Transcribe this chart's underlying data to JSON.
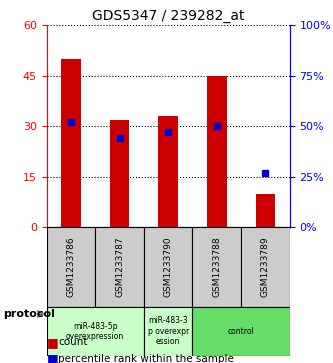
{
  "title": "GDS5347 / 239282_at",
  "samples": [
    "GSM1233786",
    "GSM1233787",
    "GSM1233790",
    "GSM1233788",
    "GSM1233789"
  ],
  "red_values": [
    50,
    32,
    33,
    45,
    10
  ],
  "blue_percentiles": [
    52,
    44,
    47,
    50,
    27
  ],
  "ylim_left": [
    0,
    60
  ],
  "ylim_right": [
    0,
    100
  ],
  "yticks_left": [
    0,
    15,
    30,
    45,
    60
  ],
  "yticks_right": [
    0,
    25,
    50,
    75,
    100
  ],
  "ytick_labels_left": [
    "0",
    "15",
    "30",
    "45",
    "60"
  ],
  "ytick_labels_right": [
    "0%",
    "25%",
    "50%",
    "75%",
    "100%"
  ],
  "groups": [
    {
      "label": "miR-483-5p\noverexpression",
      "samples": [
        0,
        1
      ],
      "color": "#b3ffb3"
    },
    {
      "label": "miR-483-3\np overexpr\nession",
      "samples": [
        2
      ],
      "color": "#b3ffb3"
    },
    {
      "label": "control",
      "samples": [
        3,
        4
      ],
      "color": "#33cc33"
    }
  ],
  "protocol_label": "protocol",
  "bar_color": "#cc0000",
  "blue_color": "#0000cc",
  "grid_color": "#000000",
  "bar_width": 0.4,
  "sample_bg_color": "#cccccc",
  "group_colors": [
    "#c8ffc8",
    "#c8ffc8",
    "#33cc55"
  ]
}
